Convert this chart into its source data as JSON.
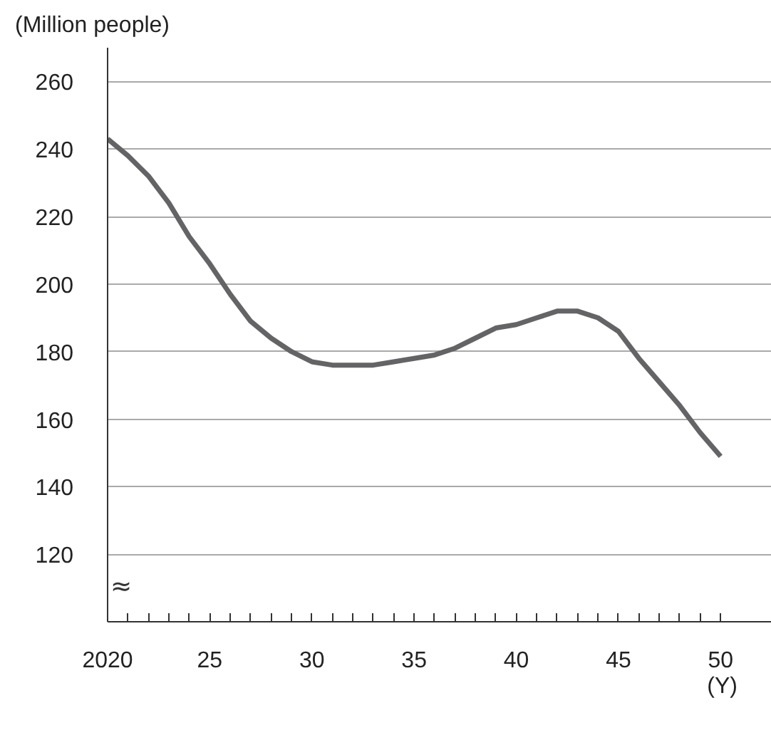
{
  "chart_data": {
    "type": "line",
    "ylabel": "(Million people)",
    "xlabel": "(Y)",
    "annotations": [
      "≈"
    ],
    "x": [
      2020,
      2021,
      2022,
      2023,
      2024,
      2025,
      2026,
      2027,
      2028,
      2029,
      2030,
      2031,
      2032,
      2033,
      2034,
      2035,
      2036,
      2037,
      2038,
      2039,
      2040,
      2041,
      2042,
      2043,
      2044,
      2045,
      2046,
      2047,
      2048,
      2049,
      2050
    ],
    "series": [
      {
        "color": "#646466",
        "values": [
          243,
          238,
          232,
          224,
          214,
          206,
          197,
          189,
          184,
          180,
          177,
          176,
          176,
          176,
          177,
          178,
          179,
          181,
          184,
          187,
          188,
          190,
          192,
          192,
          190,
          186,
          178,
          171,
          164,
          156,
          149
        ]
      }
    ],
    "xlim": [
      2020,
      2052.5
    ],
    "ylim": [
      100,
      270
    ],
    "xticks": [
      {
        "value": 2020,
        "label": "2020"
      },
      {
        "value": 2021,
        "label": null
      },
      {
        "value": 2022,
        "label": null
      },
      {
        "value": 2023,
        "label": null
      },
      {
        "value": 2024,
        "label": null
      },
      {
        "value": 2025,
        "label": "25"
      },
      {
        "value": 2026,
        "label": null
      },
      {
        "value": 2027,
        "label": null
      },
      {
        "value": 2028,
        "label": null
      },
      {
        "value": 2029,
        "label": null
      },
      {
        "value": 2030,
        "label": "30"
      },
      {
        "value": 2031,
        "label": null
      },
      {
        "value": 2032,
        "label": null
      },
      {
        "value": 2033,
        "label": null
      },
      {
        "value": 2034,
        "label": null
      },
      {
        "value": 2035,
        "label": "35"
      },
      {
        "value": 2036,
        "label": null
      },
      {
        "value": 2037,
        "label": null
      },
      {
        "value": 2038,
        "label": null
      },
      {
        "value": 2039,
        "label": null
      },
      {
        "value": 2040,
        "label": "40"
      },
      {
        "value": 2041,
        "label": null
      },
      {
        "value": 2042,
        "label": null
      },
      {
        "value": 2043,
        "label": null
      },
      {
        "value": 2044,
        "label": null
      },
      {
        "value": 2045,
        "label": "45"
      },
      {
        "value": 2046,
        "label": null
      },
      {
        "value": 2047,
        "label": null
      },
      {
        "value": 2048,
        "label": null
      },
      {
        "value": 2049,
        "label": null
      },
      {
        "value": 2050,
        "label": "50"
      }
    ],
    "yticks": [
      120,
      140,
      160,
      180,
      200,
      220,
      240,
      260
    ],
    "grid": "y",
    "marker": "none",
    "line_style": "solid"
  }
}
